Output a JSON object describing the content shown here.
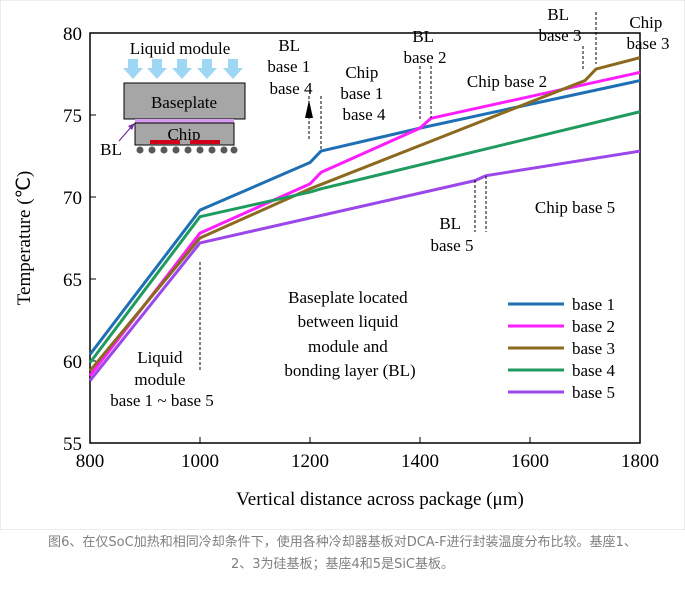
{
  "chart_data": {
    "type": "line",
    "title": "",
    "xlabel": "Vertical distance across package (μm)",
    "ylabel": "Temperature (℃)",
    "xlim": [
      800,
      1800
    ],
    "ylim": [
      55,
      80
    ],
    "x_ticks": [
      "800",
      "1000",
      "1200",
      "1400",
      "1600",
      "1800"
    ],
    "y_ticks": [
      "55",
      "60",
      "65",
      "70",
      "75",
      "80"
    ],
    "grid": false,
    "legend_position": "bottom-right",
    "series": [
      {
        "name": "base 1",
        "color": "#1f6fb5",
        "points": [
          [
            800,
            60.4
          ],
          [
            1000,
            69.2
          ],
          [
            1200,
            72.1
          ],
          [
            1220,
            72.8
          ],
          [
            1400,
            74.2
          ],
          [
            1800,
            77.1
          ]
        ]
      },
      {
        "name": "base 2",
        "color": "#ff1dff",
        "points": [
          [
            800,
            59.1
          ],
          [
            1000,
            67.8
          ],
          [
            1200,
            70.8
          ],
          [
            1220,
            71.5
          ],
          [
            1400,
            74.2
          ],
          [
            1420,
            74.8
          ],
          [
            1800,
            77.6
          ]
        ]
      },
      {
        "name": "base 3",
        "color": "#8b6a1f",
        "points": [
          [
            800,
            59.4
          ],
          [
            1000,
            67.5
          ],
          [
            1200,
            70.5
          ],
          [
            1700,
            77.1
          ],
          [
            1720,
            77.8
          ],
          [
            1800,
            78.5
          ]
        ]
      },
      {
        "name": "base 4",
        "color": "#1f9b60",
        "points": [
          [
            800,
            59.9
          ],
          [
            1000,
            68.8
          ],
          [
            1200,
            70.3
          ],
          [
            1220,
            70.5
          ],
          [
            1800,
            75.2
          ]
        ]
      },
      {
        "name": "base 5",
        "color": "#9b47ea",
        "points": [
          [
            800,
            58.8
          ],
          [
            1000,
            67.2
          ],
          [
            1500,
            71.0
          ],
          [
            1520,
            71.3
          ],
          [
            1800,
            72.8
          ]
        ]
      }
    ],
    "annotations": [
      {
        "id": "liquid-module",
        "lines": [
          "Liquid",
          "module",
          "base 1 ~ base 5"
        ]
      },
      {
        "id": "bl-base14",
        "lines": [
          "BL",
          "base 1",
          "base 4"
        ]
      },
      {
        "id": "chip-base14",
        "lines": [
          "Chip",
          "base 1",
          "base 4"
        ]
      },
      {
        "id": "bl-base2",
        "lines": [
          "BL",
          "base 2"
        ]
      },
      {
        "id": "chip-base2",
        "lines": [
          "Chip base 2"
        ]
      },
      {
        "id": "bl-base3",
        "lines": [
          "BL",
          "base 3"
        ]
      },
      {
        "id": "chip-base3",
        "lines": [
          "Chip",
          "base 3"
        ]
      },
      {
        "id": "bl-base5",
        "lines": [
          "BL",
          "base 5"
        ]
      },
      {
        "id": "chip-base5",
        "lines": [
          "Chip base 5"
        ]
      },
      {
        "id": "baseplate-note",
        "lines": [
          "Baseplate located",
          "between liquid",
          "module and",
          "bonding layer (BL)"
        ]
      }
    ],
    "inset": {
      "liquid_module": "Liquid module",
      "baseplate": "Baseplate",
      "chip": "Chip",
      "bl": "BL"
    }
  },
  "caption": {
    "line1": "图6、在仅SoC加热和相同冷却条件下，使用各种冷却器基板对DCA-F进行封装温度分布比较。基座1、",
    "line2": "2、3为硅基板；基座4和5是SiC基板。"
  }
}
